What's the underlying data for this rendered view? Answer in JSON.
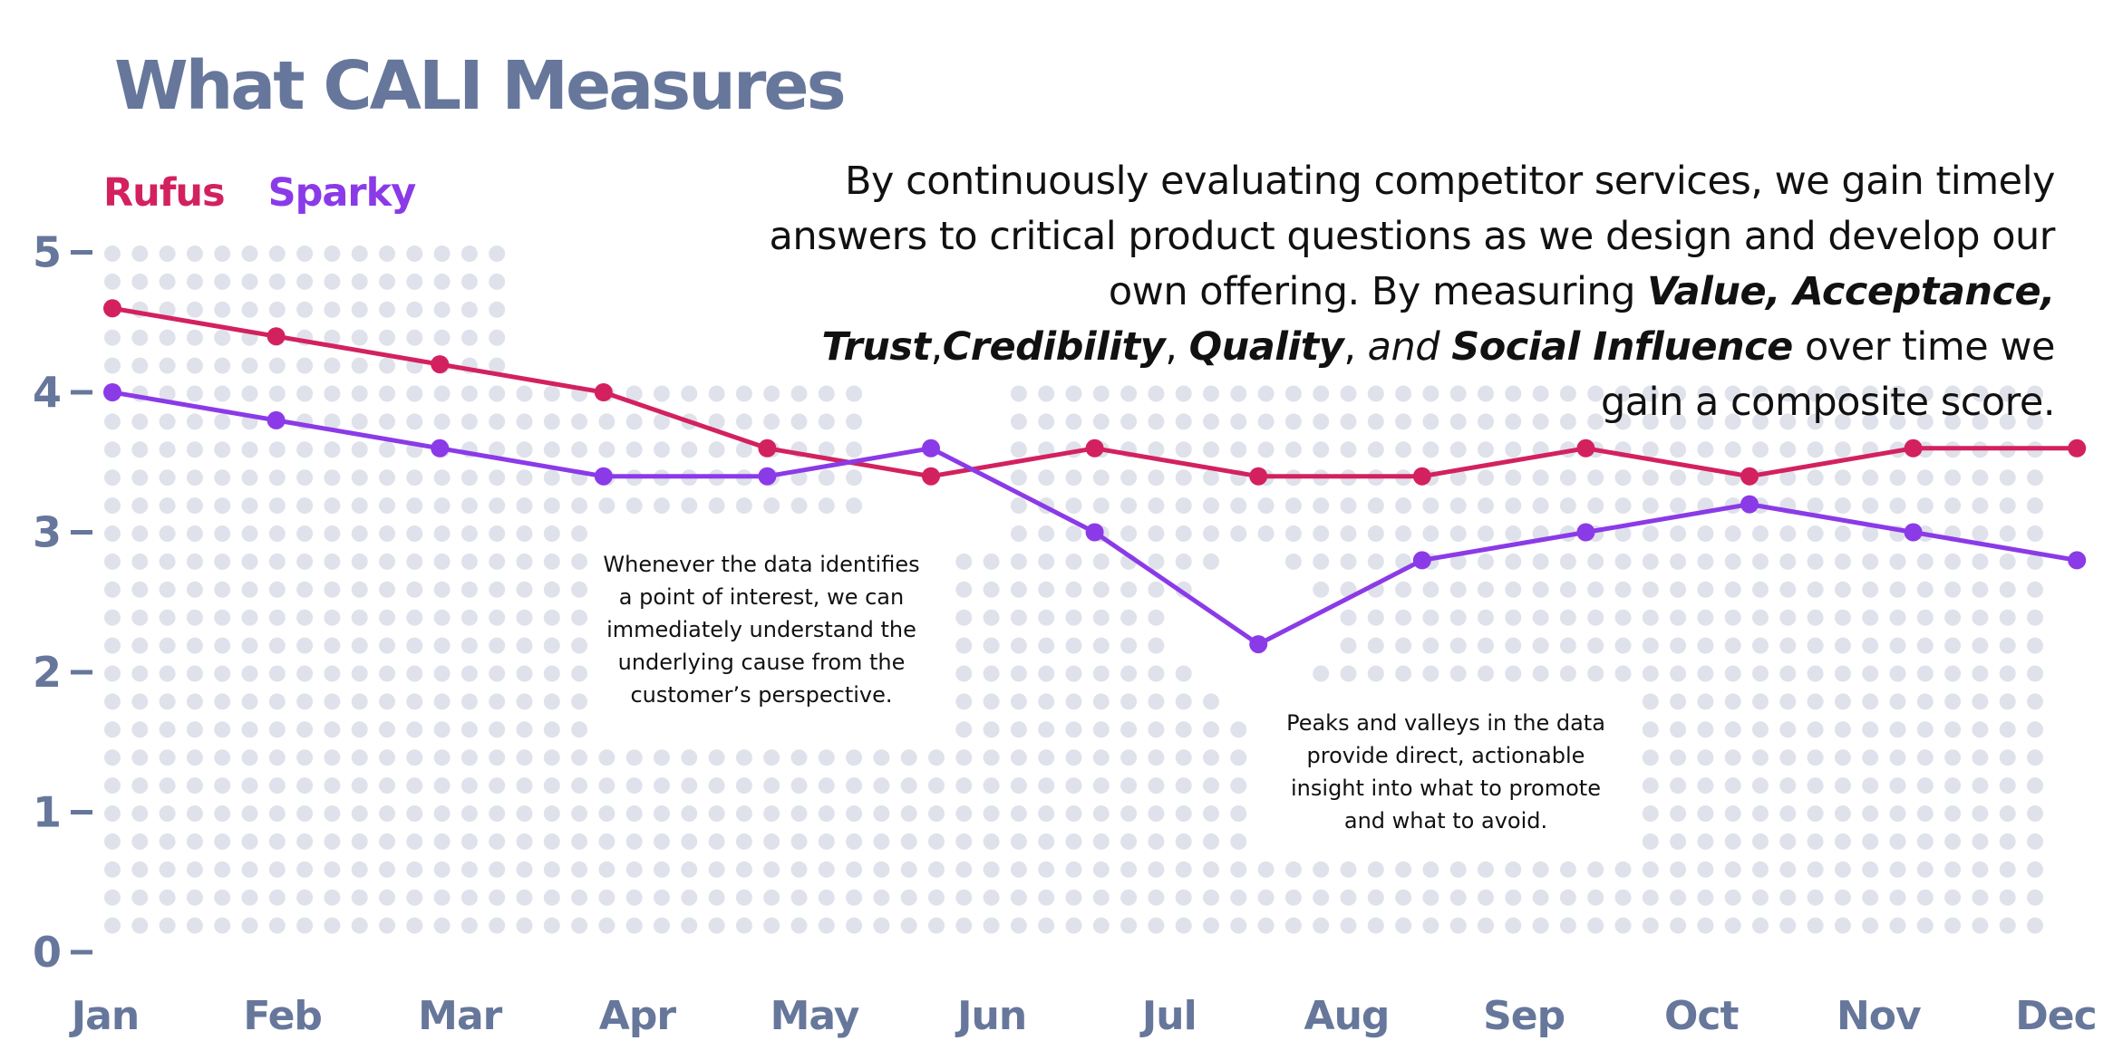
{
  "title": "What CALI Measures",
  "legend": {
    "rufus": "Rufus",
    "sparky": "Sparky"
  },
  "intro": {
    "p1": "By continuously evaluating competitor services, we gain timely answers to critical product questions as we design and develop our own offering. By measuring ",
    "value": "Value",
    "sep1": ", ",
    "acceptance": "Acceptance",
    "sep2": ", ",
    "trust": "Trust",
    "sep3": ",",
    "credibility": "Credibility",
    "sep4": ", ",
    "quality": "Quality",
    "sep5": ", ",
    "and": "and",
    "sep6": " ",
    "social": "Social Influence",
    "p2": " over time we gain a composite score."
  },
  "annotations": {
    "note1": "Whenever the data identifies a point of interest, we can immediately understand the underlying cause from the customer’s perspective.",
    "note2": "Peaks and valleys in the data provide direct, actionable insight into what to promote and what to avoid."
  },
  "colors": {
    "rufus": "#d3215f",
    "sparky": "#8b3ae8",
    "axis": "#66779b",
    "grid_dot": "#dfe2ea"
  },
  "chart_data": {
    "type": "line",
    "title": "What CALI Measures",
    "categories": [
      "Jan",
      "Feb",
      "Mar",
      "Apr",
      "May",
      "Jun",
      "Jul",
      "Aug",
      "Sep",
      "Oct",
      "Nov",
      "Dec"
    ],
    "x": [
      0,
      1,
      2,
      3,
      4,
      5,
      6,
      7,
      8,
      9,
      10,
      11,
      12
    ],
    "ylim": [
      0,
      5
    ],
    "yticks": [
      0,
      1,
      2,
      3,
      4,
      5
    ],
    "xlabel": "",
    "ylabel": "",
    "legend_position": "top-left",
    "series": [
      {
        "name": "Rufus",
        "color": "#d3215f",
        "values": [
          4.6,
          4.4,
          4.2,
          4.0,
          3.6,
          3.4,
          3.6,
          3.4,
          3.4,
          3.6,
          3.4,
          3.6,
          3.6
        ]
      },
      {
        "name": "Sparky",
        "color": "#8b3ae8",
        "values": [
          4.0,
          3.8,
          3.6,
          3.4,
          3.4,
          3.6,
          3.0,
          2.2,
          2.8,
          3.0,
          3.2,
          3.0,
          2.8
        ]
      }
    ]
  }
}
